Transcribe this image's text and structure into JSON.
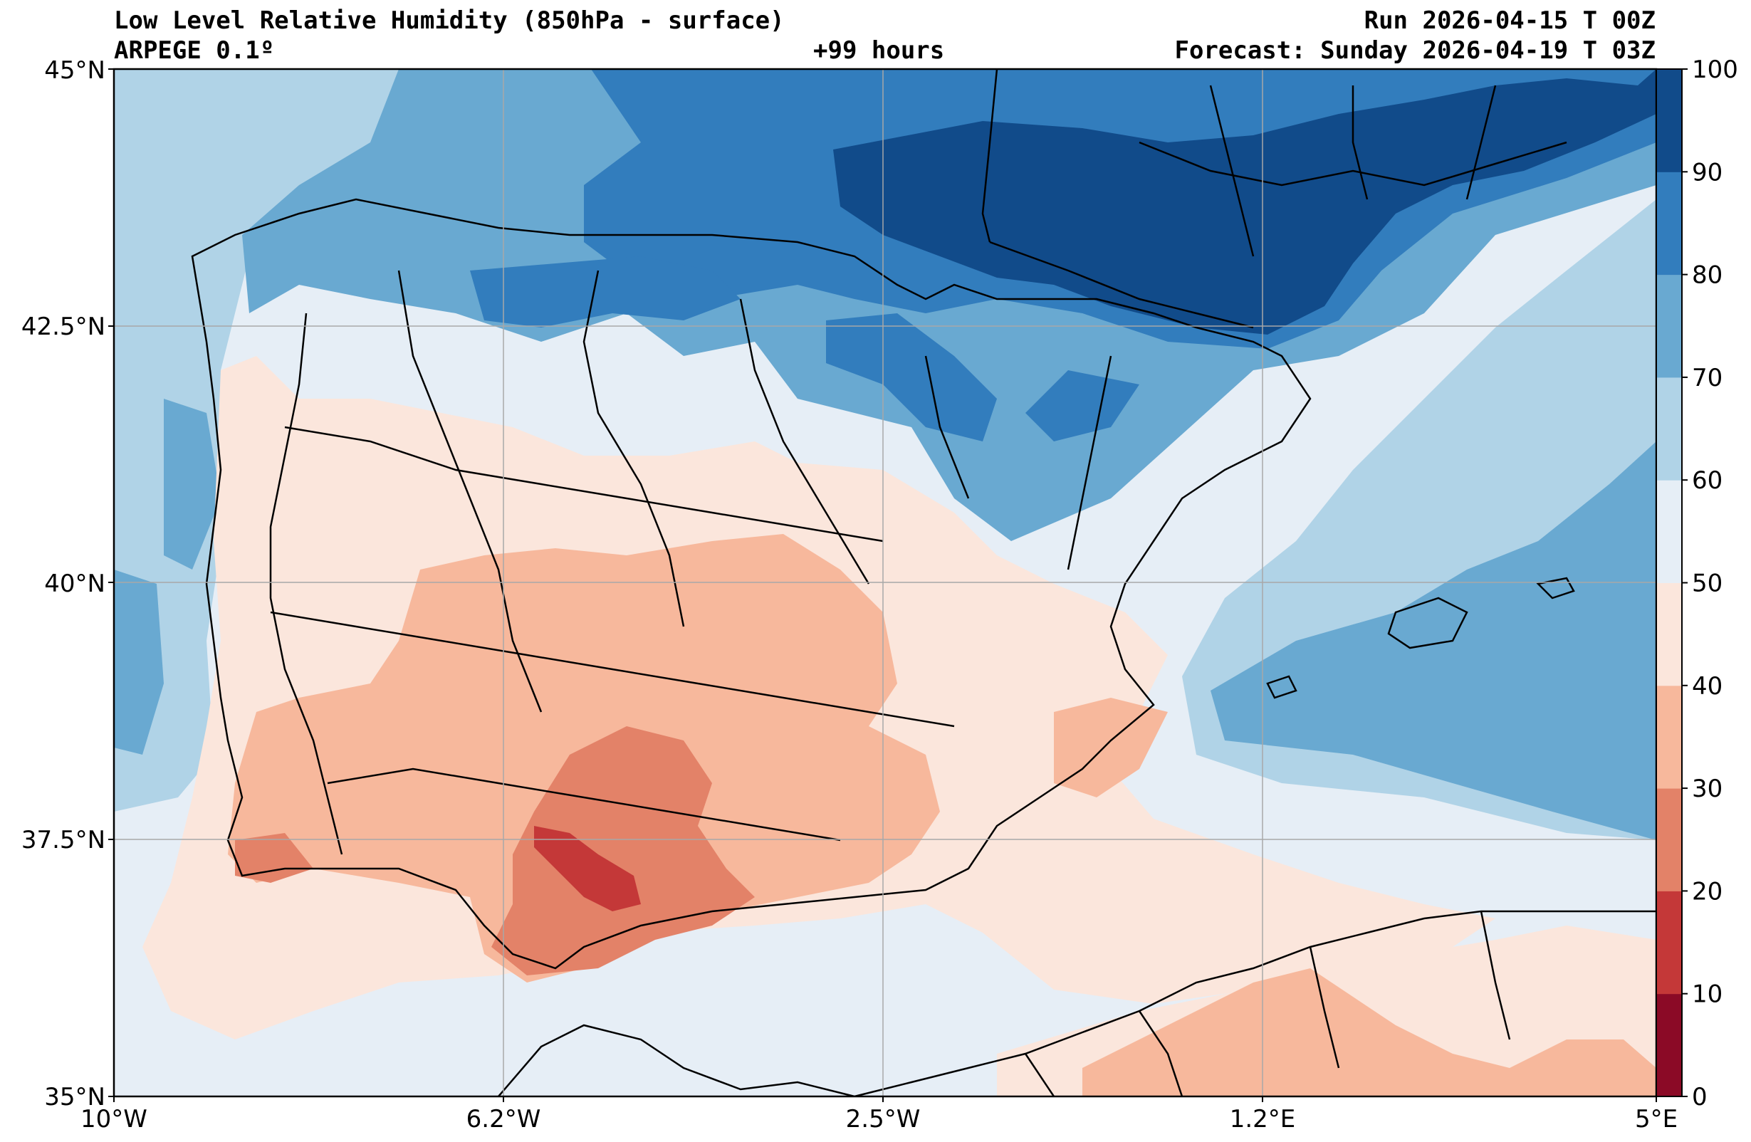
{
  "header": {
    "title": "Low Level Relative Humidity (850hPa - surface)",
    "model": "ARPEGE 0.1º",
    "lead_time": "+99 hours",
    "run": "Run 2026-04-15 T 00Z",
    "forecast": "Forecast: Sunday 2026-04-19 T 03Z"
  },
  "axes": {
    "lon_ticks": [
      "10°W",
      "6.2°W",
      "2.5°W",
      "1.2°E",
      "5°E"
    ],
    "lat_ticks": [
      "45°N",
      "42.5°N",
      "40°N",
      "37.5°N",
      "35°N"
    ]
  },
  "colorbar": {
    "levels": [
      "0",
      "10",
      "20",
      "30",
      "40",
      "50",
      "60",
      "70",
      "80",
      "90",
      "100"
    ],
    "colors": [
      "#8b0a26",
      "#c43838",
      "#e38268",
      "#f7b89c",
      "#fbe6dc",
      "#e6eef6",
      "#b0d3e7",
      "#69a9d1",
      "#327dbd",
      "#114b8a"
    ]
  },
  "palette": {
    "lt40": "#f7b89c",
    "lt50": "#fbe6dc",
    "lt60": "#e6eef6",
    "lt70": "#b0d3e7",
    "lt80": "#69a9d1",
    "lt90": "#327dbd",
    "lt100": "#114b8a",
    "lt30": "#e38268",
    "lt20": "#c43838"
  }
}
